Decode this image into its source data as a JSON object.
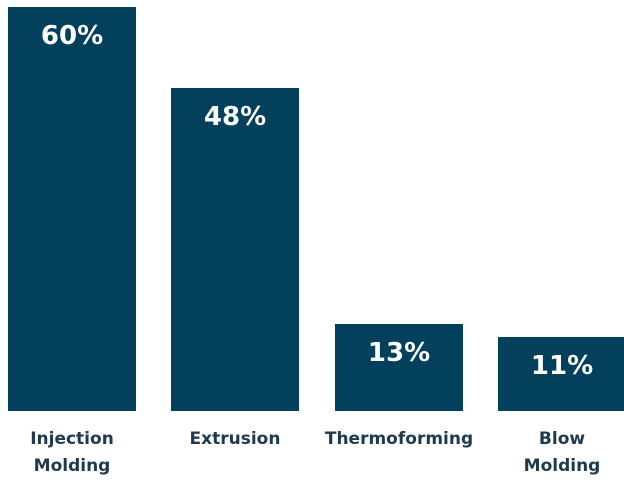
{
  "chart_data": {
    "type": "bar",
    "categories": [
      "Injection Molding",
      "Extrusion",
      "Thermoforming",
      "Blow Molding"
    ],
    "values": [
      60,
      48,
      13,
      11
    ],
    "value_labels": [
      "60%",
      "48%",
      "13%",
      "11%"
    ],
    "color": "#03405c"
  }
}
